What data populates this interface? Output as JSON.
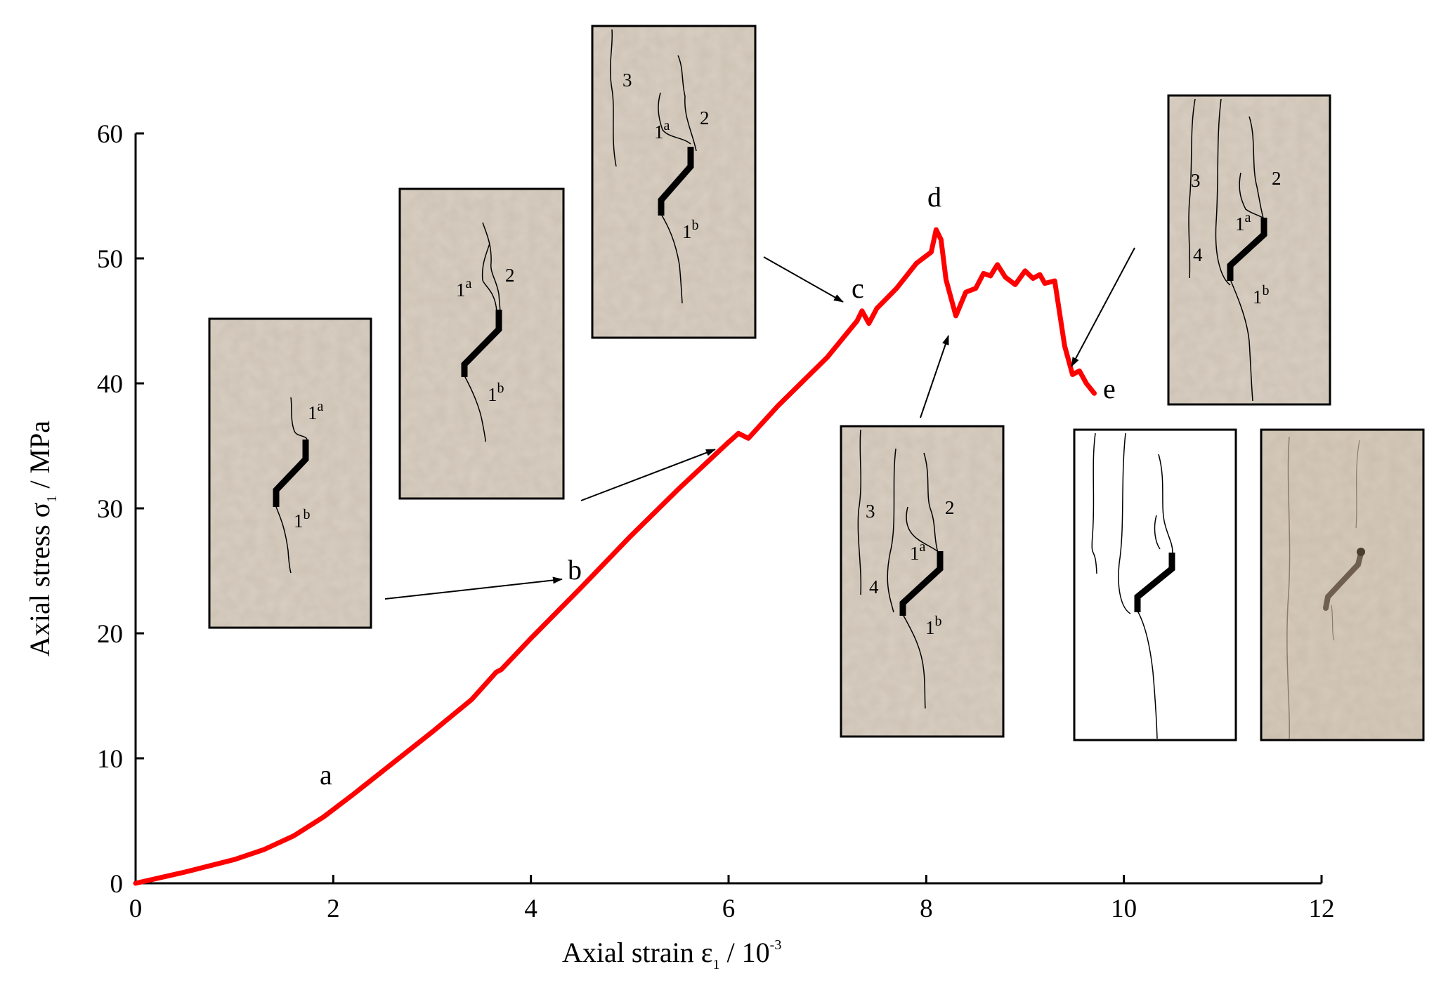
{
  "chart_data": {
    "type": "line",
    "xlabel": {
      "main": "Axial strain ε",
      "sub": "1",
      "unit": " / 10",
      "unit_sup": "-3"
    },
    "ylabel": {
      "main": "Axial stress σ",
      "sub": "1",
      "unit": " / MPa"
    },
    "xlim": [
      0,
      12
    ],
    "ylim": [
      0,
      60
    ],
    "xticks": [
      "0",
      "2",
      "4",
      "6",
      "8",
      "10",
      "12"
    ],
    "yticks": [
      "0",
      "10",
      "20",
      "30",
      "40",
      "50",
      "60"
    ],
    "grid": false,
    "series": [
      {
        "color": "#ff0000",
        "points": [
          [
            0,
            0
          ],
          [
            0.5,
            0.9
          ],
          [
            1.0,
            1.9
          ],
          [
            1.3,
            2.7
          ],
          [
            1.6,
            3.8
          ],
          [
            1.9,
            5.3
          ],
          [
            2.2,
            7.1
          ],
          [
            2.6,
            9.6
          ],
          [
            3.0,
            12.1
          ],
          [
            3.4,
            14.7
          ],
          [
            3.65,
            16.9
          ],
          [
            3.7,
            17.1
          ],
          [
            4.0,
            19.6
          ],
          [
            4.5,
            23.6
          ],
          [
            5.0,
            27.7
          ],
          [
            5.5,
            31.6
          ],
          [
            6.0,
            35.3
          ],
          [
            6.1,
            36.0
          ],
          [
            6.2,
            35.6
          ],
          [
            6.5,
            38.2
          ],
          [
            7.0,
            42.1
          ],
          [
            7.3,
            45.0
          ],
          [
            7.35,
            45.8
          ],
          [
            7.42,
            44.8
          ],
          [
            7.5,
            46.0
          ],
          [
            7.7,
            47.6
          ],
          [
            7.9,
            49.6
          ],
          [
            8.05,
            50.5
          ],
          [
            8.1,
            52.3
          ],
          [
            8.15,
            51.5
          ],
          [
            8.2,
            48.3
          ],
          [
            8.3,
            45.4
          ],
          [
            8.4,
            47.3
          ],
          [
            8.5,
            47.6
          ],
          [
            8.58,
            48.8
          ],
          [
            8.65,
            48.6
          ],
          [
            8.72,
            49.5
          ],
          [
            8.8,
            48.5
          ],
          [
            8.9,
            47.9
          ],
          [
            9.0,
            49.0
          ],
          [
            9.08,
            48.4
          ],
          [
            9.15,
            48.7
          ],
          [
            9.2,
            48.0
          ],
          [
            9.3,
            48.2
          ],
          [
            9.4,
            43.0
          ],
          [
            9.48,
            40.7
          ],
          [
            9.55,
            41.0
          ],
          [
            9.62,
            40.0
          ],
          [
            9.7,
            39.2
          ]
        ]
      }
    ],
    "annotations": [
      "a",
      "b",
      "c",
      "d",
      "e"
    ]
  },
  "insets": {
    "a_panel": {
      "labels": [
        "1",
        "1"
      ],
      "sups": [
        "a",
        "b"
      ]
    },
    "b_panel": {
      "labels": [
        "1",
        "2",
        "1"
      ],
      "sups": [
        "a",
        "b"
      ]
    },
    "c_panel": {
      "labels": [
        "3",
        "1",
        "2",
        "1"
      ],
      "sups": [
        "a",
        "b"
      ]
    },
    "d_panel": {
      "labels": [
        "3",
        "2",
        "1",
        "4",
        "1"
      ],
      "sups": [
        "a",
        "b"
      ]
    },
    "e_panel": {
      "labels": [
        "3",
        "2",
        "1",
        "4",
        "1"
      ],
      "sups": [
        "a",
        "b"
      ]
    }
  },
  "colors": {
    "curve": "#ff0000",
    "photo_bg": "#d9cfc2",
    "crack_line": "#000000"
  }
}
